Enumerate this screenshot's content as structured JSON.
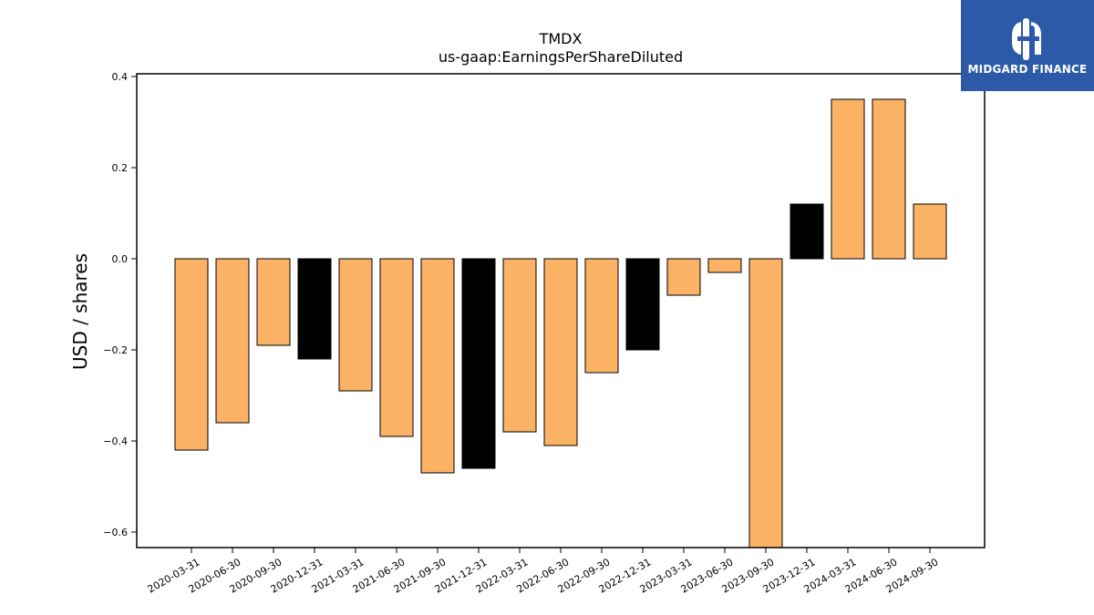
{
  "chart_data": {
    "type": "bar",
    "title": "TMDX",
    "subtitle": "us-gaap:EarningsPerShareDiluted",
    "xlabel": "",
    "ylabel": "USD / shares",
    "ylim": [
      -0.634,
      0.406
    ],
    "yticks": [
      0.4,
      0.2,
      0.0,
      -0.2,
      -0.4,
      -0.6
    ],
    "ytick_labels": [
      "0.4",
      "0.2",
      "0.0",
      "−0.2",
      "−0.4",
      "−0.6"
    ],
    "grid": false,
    "categories": [
      "2020-03-31",
      "2020-06-30",
      "2020-09-30",
      "2020-12-31",
      "2021-03-31",
      "2021-06-30",
      "2021-09-30",
      "2021-12-31",
      "2022-03-31",
      "2022-06-30",
      "2022-09-30",
      "2022-12-31",
      "2023-03-31",
      "2023-06-30",
      "2023-09-30",
      "2023-12-31",
      "2024-03-31",
      "2024-06-30",
      "2024-09-30"
    ],
    "values": [
      -0.42,
      -0.36,
      -0.19,
      -0.22,
      -0.29,
      -0.39,
      -0.47,
      -0.46,
      -0.38,
      -0.41,
      -0.25,
      -0.2,
      -0.08,
      -0.03,
      -0.64,
      0.12,
      0.35,
      0.35,
      0.12
    ],
    "bar_colors": [
      "#fbb264",
      "#fbb264",
      "#fbb264",
      "#000000",
      "#fbb264",
      "#fbb264",
      "#fbb264",
      "#000000",
      "#fbb264",
      "#fbb264",
      "#fbb264",
      "#000000",
      "#fbb264",
      "#fbb264",
      "#fbb264",
      "#000000",
      "#fbb264",
      "#fbb264",
      "#fbb264"
    ]
  },
  "logo": {
    "text": "MIDGARD FINANCE",
    "background": "#2c5aa8",
    "name": "midgard-finance-logo"
  }
}
